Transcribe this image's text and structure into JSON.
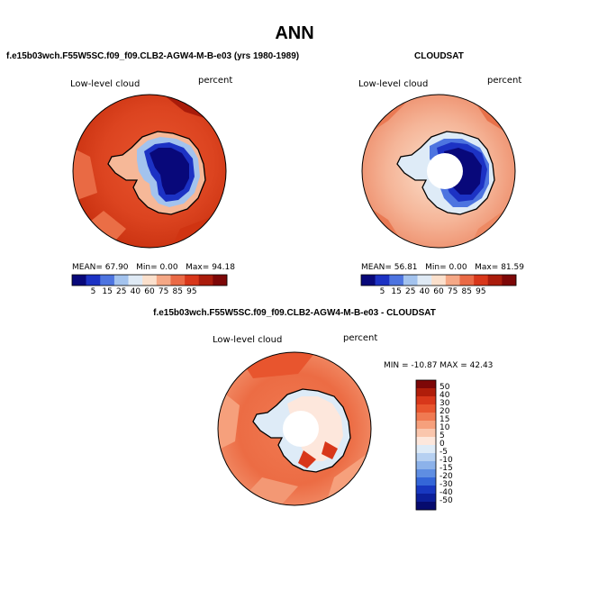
{
  "main_title": "ANN",
  "panel1": {
    "title": "f.e15b03wch.F55W5SC.f09_f09.CLB2-AGW4-M-B-e03 (yrs 1980-1989)",
    "variable": "Low-level cloud",
    "units": "percent",
    "mean_label": "MEAN=",
    "mean_value": "67.90",
    "min_label": "Min=",
    "min_value": "0.00",
    "max_label": "Max=",
    "max_value": "94.18"
  },
  "panel2": {
    "title": "CLOUDSAT",
    "variable": "Low-level cloud",
    "units": "percent",
    "mean_label": "MEAN=",
    "mean_value": "56.81",
    "min_label": "Min=",
    "min_value": "0.00",
    "max_label": "Max=",
    "max_value": "81.59"
  },
  "panel3": {
    "title": "f.e15b03wch.F55W5SC.f09_f09.CLB2-AGW4-M-B-e03 - CLOUDSAT",
    "variable": "Low-level cloud",
    "units": "percent",
    "minmax_text": "MIN = -10.87 MAX =  42.43"
  },
  "colors": {
    "land_ice_low": "#0a1aa0",
    "ocean_high": "#d9431c",
    "coastline": "#000000"
  },
  "chart_data": [
    {
      "type": "heatmap",
      "projection": "south-polar-stereographic",
      "title": "f.e15b03wch.F55W5SC.f09_f09.CLB2-AGW4-M-B-e03 (yrs 1980-1989)",
      "variable": "Low-level cloud",
      "units": "percent",
      "mean": 67.9,
      "min": 0.0,
      "max": 94.18,
      "colorbar_labels": [
        "5",
        "15",
        "25",
        "40",
        "60",
        "75",
        "85",
        "95"
      ],
      "colorbar_colors": [
        "#08087a",
        "#1c32c4",
        "#4d74e0",
        "#a3c3ee",
        "#dfeaf5",
        "#fbe0cc",
        "#f5a886",
        "#ea6a46",
        "#d8371a",
        "#aa1c0c",
        "#7d0707"
      ]
    },
    {
      "type": "heatmap",
      "projection": "south-polar-stereographic",
      "title": "CLOUDSAT",
      "variable": "Low-level cloud",
      "units": "percent",
      "mean": 56.81,
      "min": 0.0,
      "max": 81.59,
      "colorbar_labels": [
        "5",
        "15",
        "25",
        "40",
        "60",
        "75",
        "85",
        "95"
      ],
      "colorbar_colors": [
        "#08087a",
        "#1c32c4",
        "#4d74e0",
        "#a3c3ee",
        "#dfeaf5",
        "#fbe0cc",
        "#f5a886",
        "#ea6a46",
        "#d8371a",
        "#aa1c0c",
        "#7d0707"
      ]
    },
    {
      "type": "heatmap",
      "projection": "south-polar-stereographic",
      "title": "f.e15b03wch.F55W5SC.f09_f09.CLB2-AGW4-M-B-e03 - CLOUDSAT",
      "variable": "Low-level cloud",
      "units": "percent",
      "min": -10.87,
      "max": 42.43,
      "colorbar_labels": [
        "50",
        "40",
        "30",
        "20",
        "15",
        "10",
        "5",
        "0",
        "-5",
        "-10",
        "-15",
        "-20",
        "-30",
        "-40",
        "-50"
      ],
      "colorbar_colors": [
        "#7d0707",
        "#b01d0a",
        "#d8371a",
        "#e8552e",
        "#f07a52",
        "#f6a07c",
        "#fac6ad",
        "#fde7dc",
        "#deebf7",
        "#b6d0f1",
        "#8cb2ea",
        "#5f8ee2",
        "#3466d8",
        "#1838c0",
        "#0c1f9a",
        "#060b6e"
      ]
    }
  ]
}
